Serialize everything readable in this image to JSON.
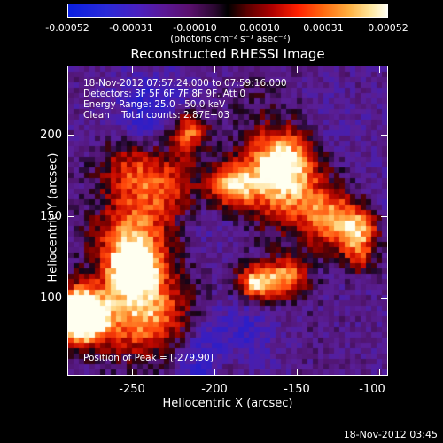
{
  "colorbar": {
    "tick_labels": [
      "-0.00052",
      "-0.00031",
      "-0.00010",
      "0.00010",
      "0.00031",
      "0.00052"
    ],
    "units": "(photons cm⁻² s⁻¹ asec⁻²)"
  },
  "title": "Reconstructed RHESSI Image",
  "annotation": {
    "time_range": "18-Nov-2012 07:57:24.000 to 07:59:16.000",
    "detectors": "Detectors: 3F 5F 6F 7F 8F 9F, Att 0",
    "energy_range": "Energy Range: 25.0 - 50.0 keV",
    "clean_counts": "Clean    Total counts: 2.87E+03",
    "peak_position": "Position of Peak = [-279,90]"
  },
  "axes": {
    "xlabel": "Heliocentric X (arcsec)",
    "ylabel": "Heliocentric Y (arcsec)",
    "xticks": [
      "-250",
      "-200",
      "-150",
      "-100"
    ],
    "yticks": [
      "200",
      "150",
      "100"
    ],
    "xlim": [
      -290,
      -96
    ],
    "ylim": [
      46,
      228
    ]
  },
  "footer": {
    "timestamp": "18-Nov-2012 03:45"
  }
}
